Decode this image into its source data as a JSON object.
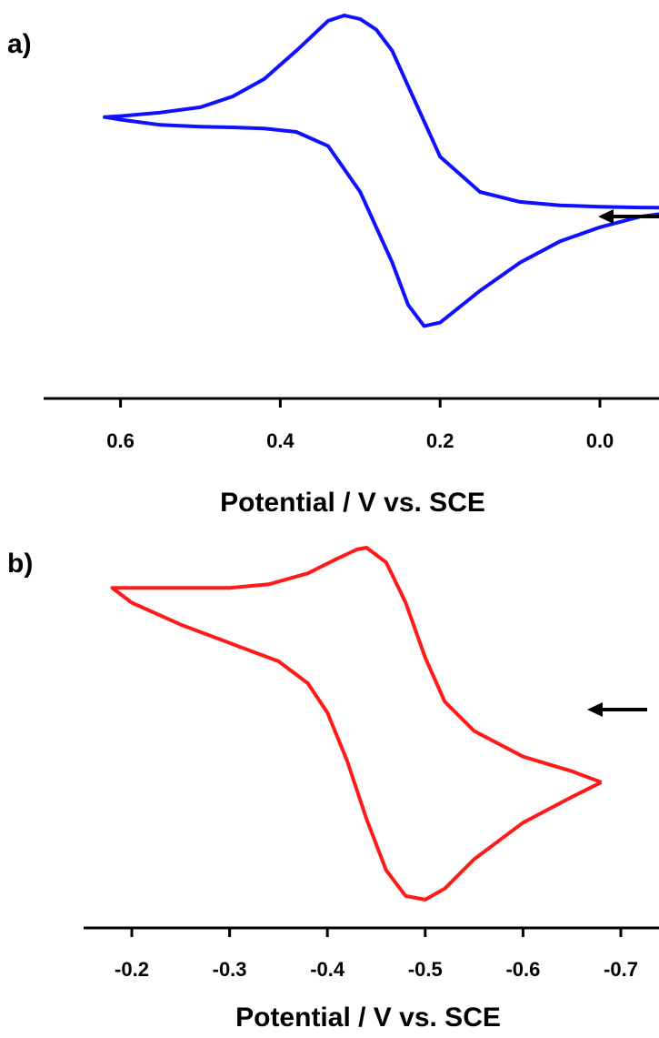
{
  "chart_data": [
    {
      "type": "line",
      "panel_label": "a)",
      "xlabel": "Potential / V vs. SCE",
      "ylabel": "",
      "xlim": [
        0.68,
        -0.1
      ],
      "ylim": [
        0,
        1
      ],
      "x_reversed": true,
      "xticks": [
        0.6,
        0.4,
        0.2,
        0.0
      ],
      "xtick_labels": [
        "0.6",
        "0.4",
        "0.2",
        "0.0"
      ],
      "color": "#1010ff",
      "scan_direction_arrow": "left",
      "series": [
        {
          "x": [
            -0.1,
            -0.05,
            0.0,
            0.05,
            0.1,
            0.15,
            0.2,
            0.22,
            0.24,
            0.26,
            0.28,
            0.3,
            0.32,
            0.34,
            0.38,
            0.42,
            0.46,
            0.5,
            0.55,
            0.6,
            0.62,
            0.6,
            0.55,
            0.5,
            0.46,
            0.42,
            0.38,
            0.34,
            0.3,
            0.28,
            0.26,
            0.24,
            0.22,
            0.2,
            0.15,
            0.1,
            0.05,
            0.0,
            -0.05,
            -0.1
          ],
          "y": [
            0.455,
            0.456,
            0.458,
            0.462,
            0.472,
            0.5,
            0.6,
            0.7,
            0.8,
            0.9,
            0.96,
            0.99,
            1.0,
            0.985,
            0.9,
            0.82,
            0.77,
            0.74,
            0.725,
            0.715,
            0.712,
            0.705,
            0.69,
            0.685,
            0.683,
            0.68,
            0.67,
            0.63,
            0.5,
            0.4,
            0.3,
            0.18,
            0.12,
            0.13,
            0.22,
            0.3,
            0.36,
            0.4,
            0.43,
            0.445
          ]
        }
      ]
    },
    {
      "type": "line",
      "panel_label": "b)",
      "xlabel": "Potential / V vs. SCE",
      "ylabel": "",
      "xlim": [
        -0.15,
        -0.75
      ],
      "ylim": [
        0,
        1
      ],
      "x_reversed": true,
      "xticks": [
        -0.2,
        -0.3,
        -0.4,
        -0.5,
        -0.6,
        -0.7
      ],
      "xtick_labels": [
        "-0.2",
        "-0.3",
        "-0.4",
        "-0.5",
        "-0.6",
        "-0.7"
      ],
      "color": "#ff1a1a",
      "scan_direction_arrow": "left",
      "series": [
        {
          "x": [
            -0.68,
            -0.65,
            -0.6,
            -0.55,
            -0.52,
            -0.5,
            -0.48,
            -0.46,
            -0.44,
            -0.43,
            -0.41,
            -0.38,
            -0.34,
            -0.3,
            -0.25,
            -0.2,
            -0.18,
            -0.2,
            -0.25,
            -0.3,
            -0.35,
            -0.38,
            -0.4,
            -0.42,
            -0.44,
            -0.46,
            -0.48,
            -0.5,
            -0.52,
            -0.55,
            -0.6,
            -0.65,
            -0.68
          ],
          "y": [
            0.36,
            0.39,
            0.43,
            0.5,
            0.58,
            0.7,
            0.85,
            0.96,
            1.0,
            0.995,
            0.97,
            0.93,
            0.9,
            0.89,
            0.89,
            0.89,
            0.89,
            0.85,
            0.79,
            0.74,
            0.69,
            0.63,
            0.55,
            0.42,
            0.26,
            0.12,
            0.05,
            0.04,
            0.07,
            0.15,
            0.25,
            0.32,
            0.36
          ]
        }
      ]
    }
  ]
}
